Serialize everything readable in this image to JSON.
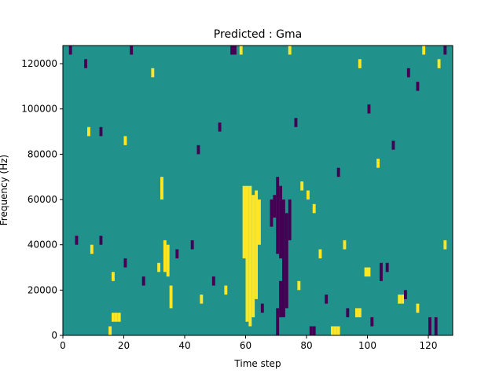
{
  "chart_data": {
    "type": "heatmap",
    "title": "Predicted : Gma",
    "xlabel": "Time step",
    "ylabel": "Frequency (Hz)",
    "xlim": [
      0,
      128
    ],
    "ylim": [
      0,
      128000
    ],
    "x_ticks": [
      0,
      20,
      40,
      60,
      80,
      100,
      120
    ],
    "x_tick_labels": [
      "0",
      "20",
      "40",
      "60",
      "80",
      "100",
      "120"
    ],
    "y_ticks": [
      0,
      20000,
      40000,
      60000,
      80000,
      100000,
      120000
    ],
    "y_tick_labels": [
      "0",
      "20000",
      "40000",
      "60000",
      "80000",
      "100000",
      "120000"
    ],
    "grid": false,
    "cell_size_hz": 2000,
    "values_legend": {
      "low": "#440154",
      "mid": "#21918c",
      "high": "#fde725"
    },
    "background_value": "mid",
    "cells": [
      {
        "x": 15,
        "y0": 0,
        "y1": 4000,
        "v": "high"
      },
      {
        "x": 16,
        "y0": 6000,
        "y1": 10000,
        "v": "high"
      },
      {
        "x": 17,
        "y0": 6000,
        "y1": 10000,
        "v": "high"
      },
      {
        "x": 18,
        "y0": 6000,
        "y1": 10000,
        "v": "high"
      },
      {
        "x": 88,
        "y0": 0,
        "y1": 4000,
        "v": "high"
      },
      {
        "x": 89,
        "y0": 0,
        "y1": 4000,
        "v": "high"
      },
      {
        "x": 90,
        "y0": 0,
        "y1": 4000,
        "v": "high"
      },
      {
        "x": 81,
        "y0": 0,
        "y1": 4000,
        "v": "low"
      },
      {
        "x": 82,
        "y0": 0,
        "y1": 4000,
        "v": "low"
      },
      {
        "x": 120,
        "y0": 0,
        "y1": 8000,
        "v": "low"
      },
      {
        "x": 122,
        "y0": 0,
        "y1": 8000,
        "v": "low"
      },
      {
        "x": 70,
        "y0": 0,
        "y1": 12000,
        "v": "low"
      },
      {
        "x": 71,
        "y0": 8000,
        "y1": 24000,
        "v": "low"
      },
      {
        "x": 72,
        "y0": 8000,
        "y1": 30000,
        "v": "low"
      },
      {
        "x": 73,
        "y0": 12000,
        "y1": 30000,
        "v": "low"
      },
      {
        "x": 70,
        "y0": 36000,
        "y1": 70000,
        "v": "low"
      },
      {
        "x": 71,
        "y0": 34000,
        "y1": 66000,
        "v": "low"
      },
      {
        "x": 72,
        "y0": 30000,
        "y1": 60000,
        "v": "low"
      },
      {
        "x": 73,
        "y0": 30000,
        "y1": 54000,
        "v": "low"
      },
      {
        "x": 74,
        "y0": 42000,
        "y1": 60000,
        "v": "low"
      },
      {
        "x": 69,
        "y0": 52000,
        "y1": 62000,
        "v": "low"
      },
      {
        "x": 68,
        "y0": 48000,
        "y1": 60000,
        "v": "low"
      },
      {
        "x": 60,
        "y0": 6000,
        "y1": 66000,
        "v": "high"
      },
      {
        "x": 61,
        "y0": 4000,
        "y1": 66000,
        "v": "high"
      },
      {
        "x": 62,
        "y0": 8000,
        "y1": 62000,
        "v": "high"
      },
      {
        "x": 63,
        "y0": 16000,
        "y1": 64000,
        "v": "high"
      },
      {
        "x": 64,
        "y0": 40000,
        "y1": 60000,
        "v": "high"
      },
      {
        "x": 59,
        "y0": 34000,
        "y1": 66000,
        "v": "high"
      },
      {
        "x": 33,
        "y0": 28000,
        "y1": 42000,
        "v": "high"
      },
      {
        "x": 34,
        "y0": 26000,
        "y1": 40000,
        "v": "high"
      },
      {
        "x": 32,
        "y0": 60000,
        "y1": 70000,
        "v": "high"
      },
      {
        "x": 35,
        "y0": 12000,
        "y1": 22000,
        "v": "high"
      },
      {
        "x": 31,
        "y0": 28000,
        "y1": 32000,
        "v": "high"
      },
      {
        "x": 42,
        "y0": 38000,
        "y1": 42000,
        "v": "low"
      },
      {
        "x": 37,
        "y0": 34000,
        "y1": 38000,
        "v": "low"
      },
      {
        "x": 106,
        "y0": 28000,
        "y1": 32000,
        "v": "low"
      },
      {
        "x": 104,
        "y0": 24000,
        "y1": 32000,
        "v": "low"
      },
      {
        "x": 99,
        "y0": 26000,
        "y1": 30000,
        "v": "high"
      },
      {
        "x": 100,
        "y0": 26000,
        "y1": 30000,
        "v": "high"
      },
      {
        "x": 110,
        "y0": 14000,
        "y1": 18000,
        "v": "high"
      },
      {
        "x": 111,
        "y0": 14000,
        "y1": 18000,
        "v": "high"
      },
      {
        "x": 96,
        "y0": 8000,
        "y1": 12000,
        "v": "high"
      },
      {
        "x": 97,
        "y0": 8000,
        "y1": 12000,
        "v": "high"
      },
      {
        "x": 55,
        "y0": 124000,
        "y1": 128000,
        "v": "low"
      },
      {
        "x": 56,
        "y0": 124000,
        "y1": 128000,
        "v": "low"
      },
      {
        "x": 58,
        "y0": 124000,
        "y1": 128000,
        "v": "high"
      },
      {
        "x": 80,
        "y0": 60000,
        "y1": 64000,
        "v": "high"
      },
      {
        "x": 82,
        "y0": 54000,
        "y1": 58000,
        "v": "high"
      },
      {
        "x": 78,
        "y0": 64000,
        "y1": 68000,
        "v": "high"
      },
      {
        "x": 84,
        "y0": 34000,
        "y1": 38000,
        "v": "high"
      },
      {
        "x": 92,
        "y0": 38000,
        "y1": 42000,
        "v": "high"
      },
      {
        "x": 44,
        "y0": 80000,
        "y1": 84000,
        "v": "low"
      },
      {
        "x": 90,
        "y0": 70000,
        "y1": 74000,
        "v": "low"
      },
      {
        "x": 112,
        "y0": 16000,
        "y1": 20000,
        "v": "low"
      },
      {
        "x": 2,
        "y0": 124000,
        "y1": 128000,
        "v": "low"
      },
      {
        "x": 22,
        "y0": 124000,
        "y1": 128000,
        "v": "low"
      },
      {
        "x": 74,
        "y0": 124000,
        "y1": 128000,
        "v": "high"
      },
      {
        "x": 118,
        "y0": 124000,
        "y1": 128000,
        "v": "high"
      },
      {
        "x": 125,
        "y0": 124000,
        "y1": 128000,
        "v": "low"
      },
      {
        "x": 113,
        "y0": 114000,
        "y1": 118000,
        "v": "low"
      },
      {
        "x": 116,
        "y0": 108000,
        "y1": 112000,
        "v": "low"
      },
      {
        "x": 7,
        "y0": 118000,
        "y1": 122000,
        "v": "low"
      },
      {
        "x": 29,
        "y0": 114000,
        "y1": 118000,
        "v": "high"
      },
      {
        "x": 97,
        "y0": 118000,
        "y1": 122000,
        "v": "high"
      },
      {
        "x": 123,
        "y0": 118000,
        "y1": 122000,
        "v": "high"
      },
      {
        "x": 8,
        "y0": 88000,
        "y1": 92000,
        "v": "high"
      },
      {
        "x": 12,
        "y0": 88000,
        "y1": 92000,
        "v": "low"
      },
      {
        "x": 20,
        "y0": 84000,
        "y1": 88000,
        "v": "high"
      },
      {
        "x": 51,
        "y0": 90000,
        "y1": 94000,
        "v": "low"
      },
      {
        "x": 76,
        "y0": 92000,
        "y1": 96000,
        "v": "low"
      },
      {
        "x": 100,
        "y0": 98000,
        "y1": 102000,
        "v": "low"
      },
      {
        "x": 103,
        "y0": 74000,
        "y1": 78000,
        "v": "high"
      },
      {
        "x": 108,
        "y0": 82000,
        "y1": 86000,
        "v": "low"
      },
      {
        "x": 4,
        "y0": 40000,
        "y1": 44000,
        "v": "low"
      },
      {
        "x": 9,
        "y0": 36000,
        "y1": 40000,
        "v": "high"
      },
      {
        "x": 12,
        "y0": 40000,
        "y1": 44000,
        "v": "low"
      },
      {
        "x": 16,
        "y0": 24000,
        "y1": 28000,
        "v": "high"
      },
      {
        "x": 20,
        "y0": 30000,
        "y1": 34000,
        "v": "low"
      },
      {
        "x": 26,
        "y0": 22000,
        "y1": 26000,
        "v": "low"
      },
      {
        "x": 45,
        "y0": 14000,
        "y1": 18000,
        "v": "high"
      },
      {
        "x": 49,
        "y0": 22000,
        "y1": 26000,
        "v": "low"
      },
      {
        "x": 53,
        "y0": 18000,
        "y1": 22000,
        "v": "high"
      },
      {
        "x": 65,
        "y0": 10000,
        "y1": 14000,
        "v": "low"
      },
      {
        "x": 77,
        "y0": 20000,
        "y1": 24000,
        "v": "high"
      },
      {
        "x": 86,
        "y0": 14000,
        "y1": 18000,
        "v": "low"
      },
      {
        "x": 93,
        "y0": 8000,
        "y1": 12000,
        "v": "low"
      },
      {
        "x": 101,
        "y0": 4000,
        "y1": 8000,
        "v": "low"
      },
      {
        "x": 116,
        "y0": 10000,
        "y1": 14000,
        "v": "high"
      },
      {
        "x": 125,
        "y0": 38000,
        "y1": 42000,
        "v": "high"
      }
    ]
  }
}
